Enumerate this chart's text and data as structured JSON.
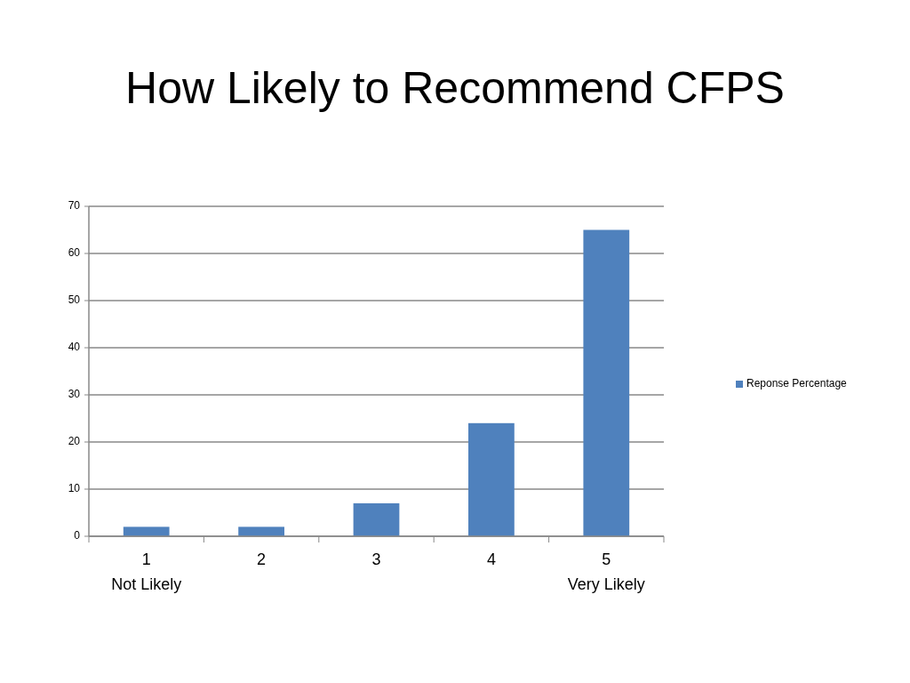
{
  "chart_data": {
    "type": "bar",
    "title": "How Likely to Recommend CFPS",
    "categories": [
      "1\nNot Likely",
      "2",
      "3",
      "4",
      "5\nVery Likely"
    ],
    "series": [
      {
        "name": "Reponse Percentage",
        "color": "#4f81bd",
        "values": [
          2,
          2,
          7,
          24,
          65
        ]
      }
    ],
    "ylim": [
      0,
      70
    ],
    "yticks": [
      0,
      10,
      20,
      30,
      40,
      50,
      60,
      70
    ],
    "grid": "y",
    "legend": "right"
  }
}
